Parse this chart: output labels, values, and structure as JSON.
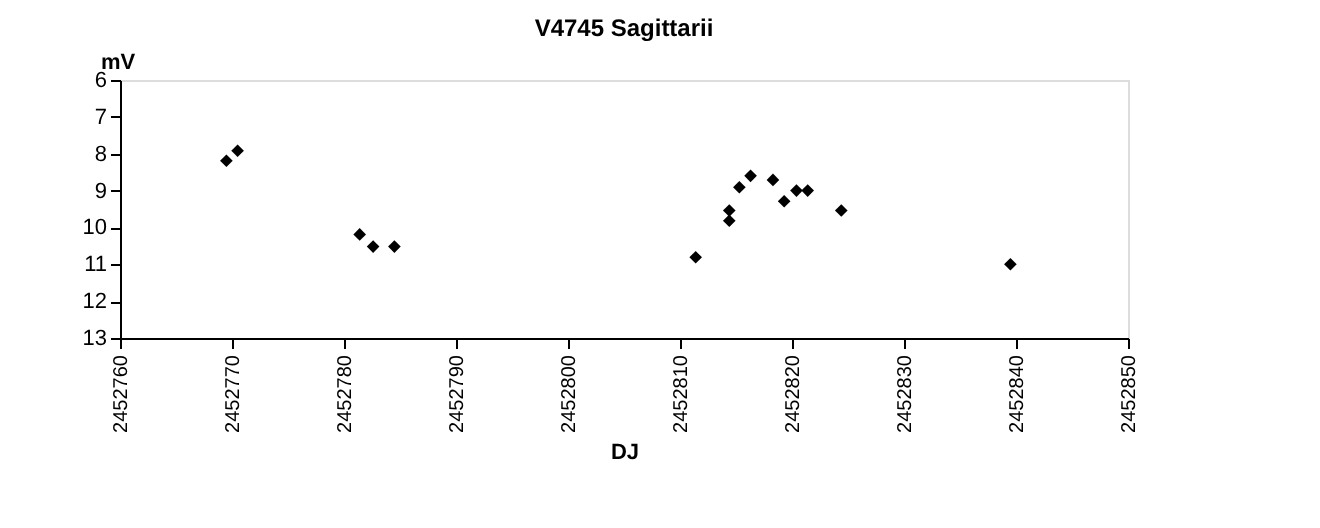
{
  "chart_data": {
    "type": "scatter",
    "title": "V4745 Sagittarii",
    "xlabel": "DJ",
    "ylabel": "mV",
    "x": [
      2452769.5,
      2452770.5,
      2452781.4,
      2452782.6,
      2452784.5,
      2452811.4,
      2452814.4,
      2452814.4,
      2452815.3,
      2452816.3,
      2452818.3,
      2452819.3,
      2452820.4,
      2452821.4,
      2452824.4,
      2452839.5
    ],
    "series": [
      {
        "color": "#000000",
        "values": [
          8.19,
          7.92,
          10.19,
          10.52,
          10.52,
          10.81,
          9.54,
          9.82,
          8.91,
          8.6,
          8.71,
          9.29,
          9.0,
          9.0,
          9.54,
          11.0
        ]
      }
    ],
    "xlim": [
      2452760,
      2452850
    ],
    "xticks": [
      2452760,
      2452770,
      2452780,
      2452790,
      2452800,
      2452810,
      2452820,
      2452830,
      2452840,
      2452850
    ],
    "ylim": [
      13,
      6
    ],
    "yticks": [
      6,
      7,
      8,
      9,
      10,
      11,
      12,
      13
    ],
    "grid": false,
    "legend": false,
    "marker": "diamond"
  }
}
